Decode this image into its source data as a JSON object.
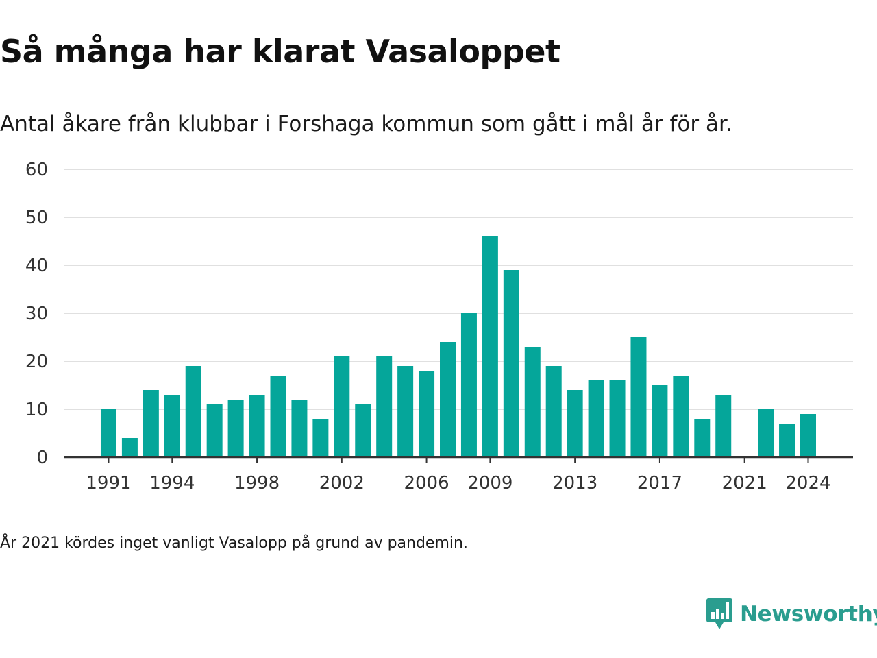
{
  "header": {
    "title": "Så många har klarat Vasaloppet",
    "subtitle": "Antal åkare från klubbar i Forshaga kommun som gått i mål år för år."
  },
  "footer": {
    "note": "År 2021 kördes inget vanligt Vasalopp på grund av pandemin.",
    "brand": "Newsworthy",
    "brand_icon": "newsworthy-logo-icon"
  },
  "colors": {
    "bar": "#05a69a",
    "grid": "#e0e0e0",
    "axis": "#333333",
    "brand": "#2a9d8f"
  },
  "chart_data": {
    "type": "bar",
    "x": [
      1991,
      1992,
      1993,
      1994,
      1995,
      1996,
      1997,
      1998,
      1999,
      2000,
      2001,
      2002,
      2003,
      2004,
      2005,
      2006,
      2007,
      2008,
      2009,
      2010,
      2011,
      2012,
      2013,
      2014,
      2015,
      2016,
      2017,
      2018,
      2019,
      2020,
      2021,
      2022,
      2023,
      2024
    ],
    "values": [
      10,
      4,
      14,
      13,
      19,
      11,
      12,
      13,
      17,
      12,
      8,
      21,
      11,
      21,
      19,
      18,
      24,
      30,
      46,
      39,
      23,
      19,
      14,
      16,
      16,
      25,
      15,
      17,
      8,
      13,
      null,
      10,
      7,
      9
    ],
    "xticks": [
      1991,
      1994,
      1998,
      2002,
      2006,
      2009,
      2013,
      2017,
      2021,
      2024
    ],
    "yticks": [
      0,
      10,
      20,
      30,
      40,
      50,
      60
    ],
    "ylim": [
      0,
      60
    ],
    "grid": true,
    "legend": "none",
    "xlabel": "",
    "ylabel": ""
  }
}
